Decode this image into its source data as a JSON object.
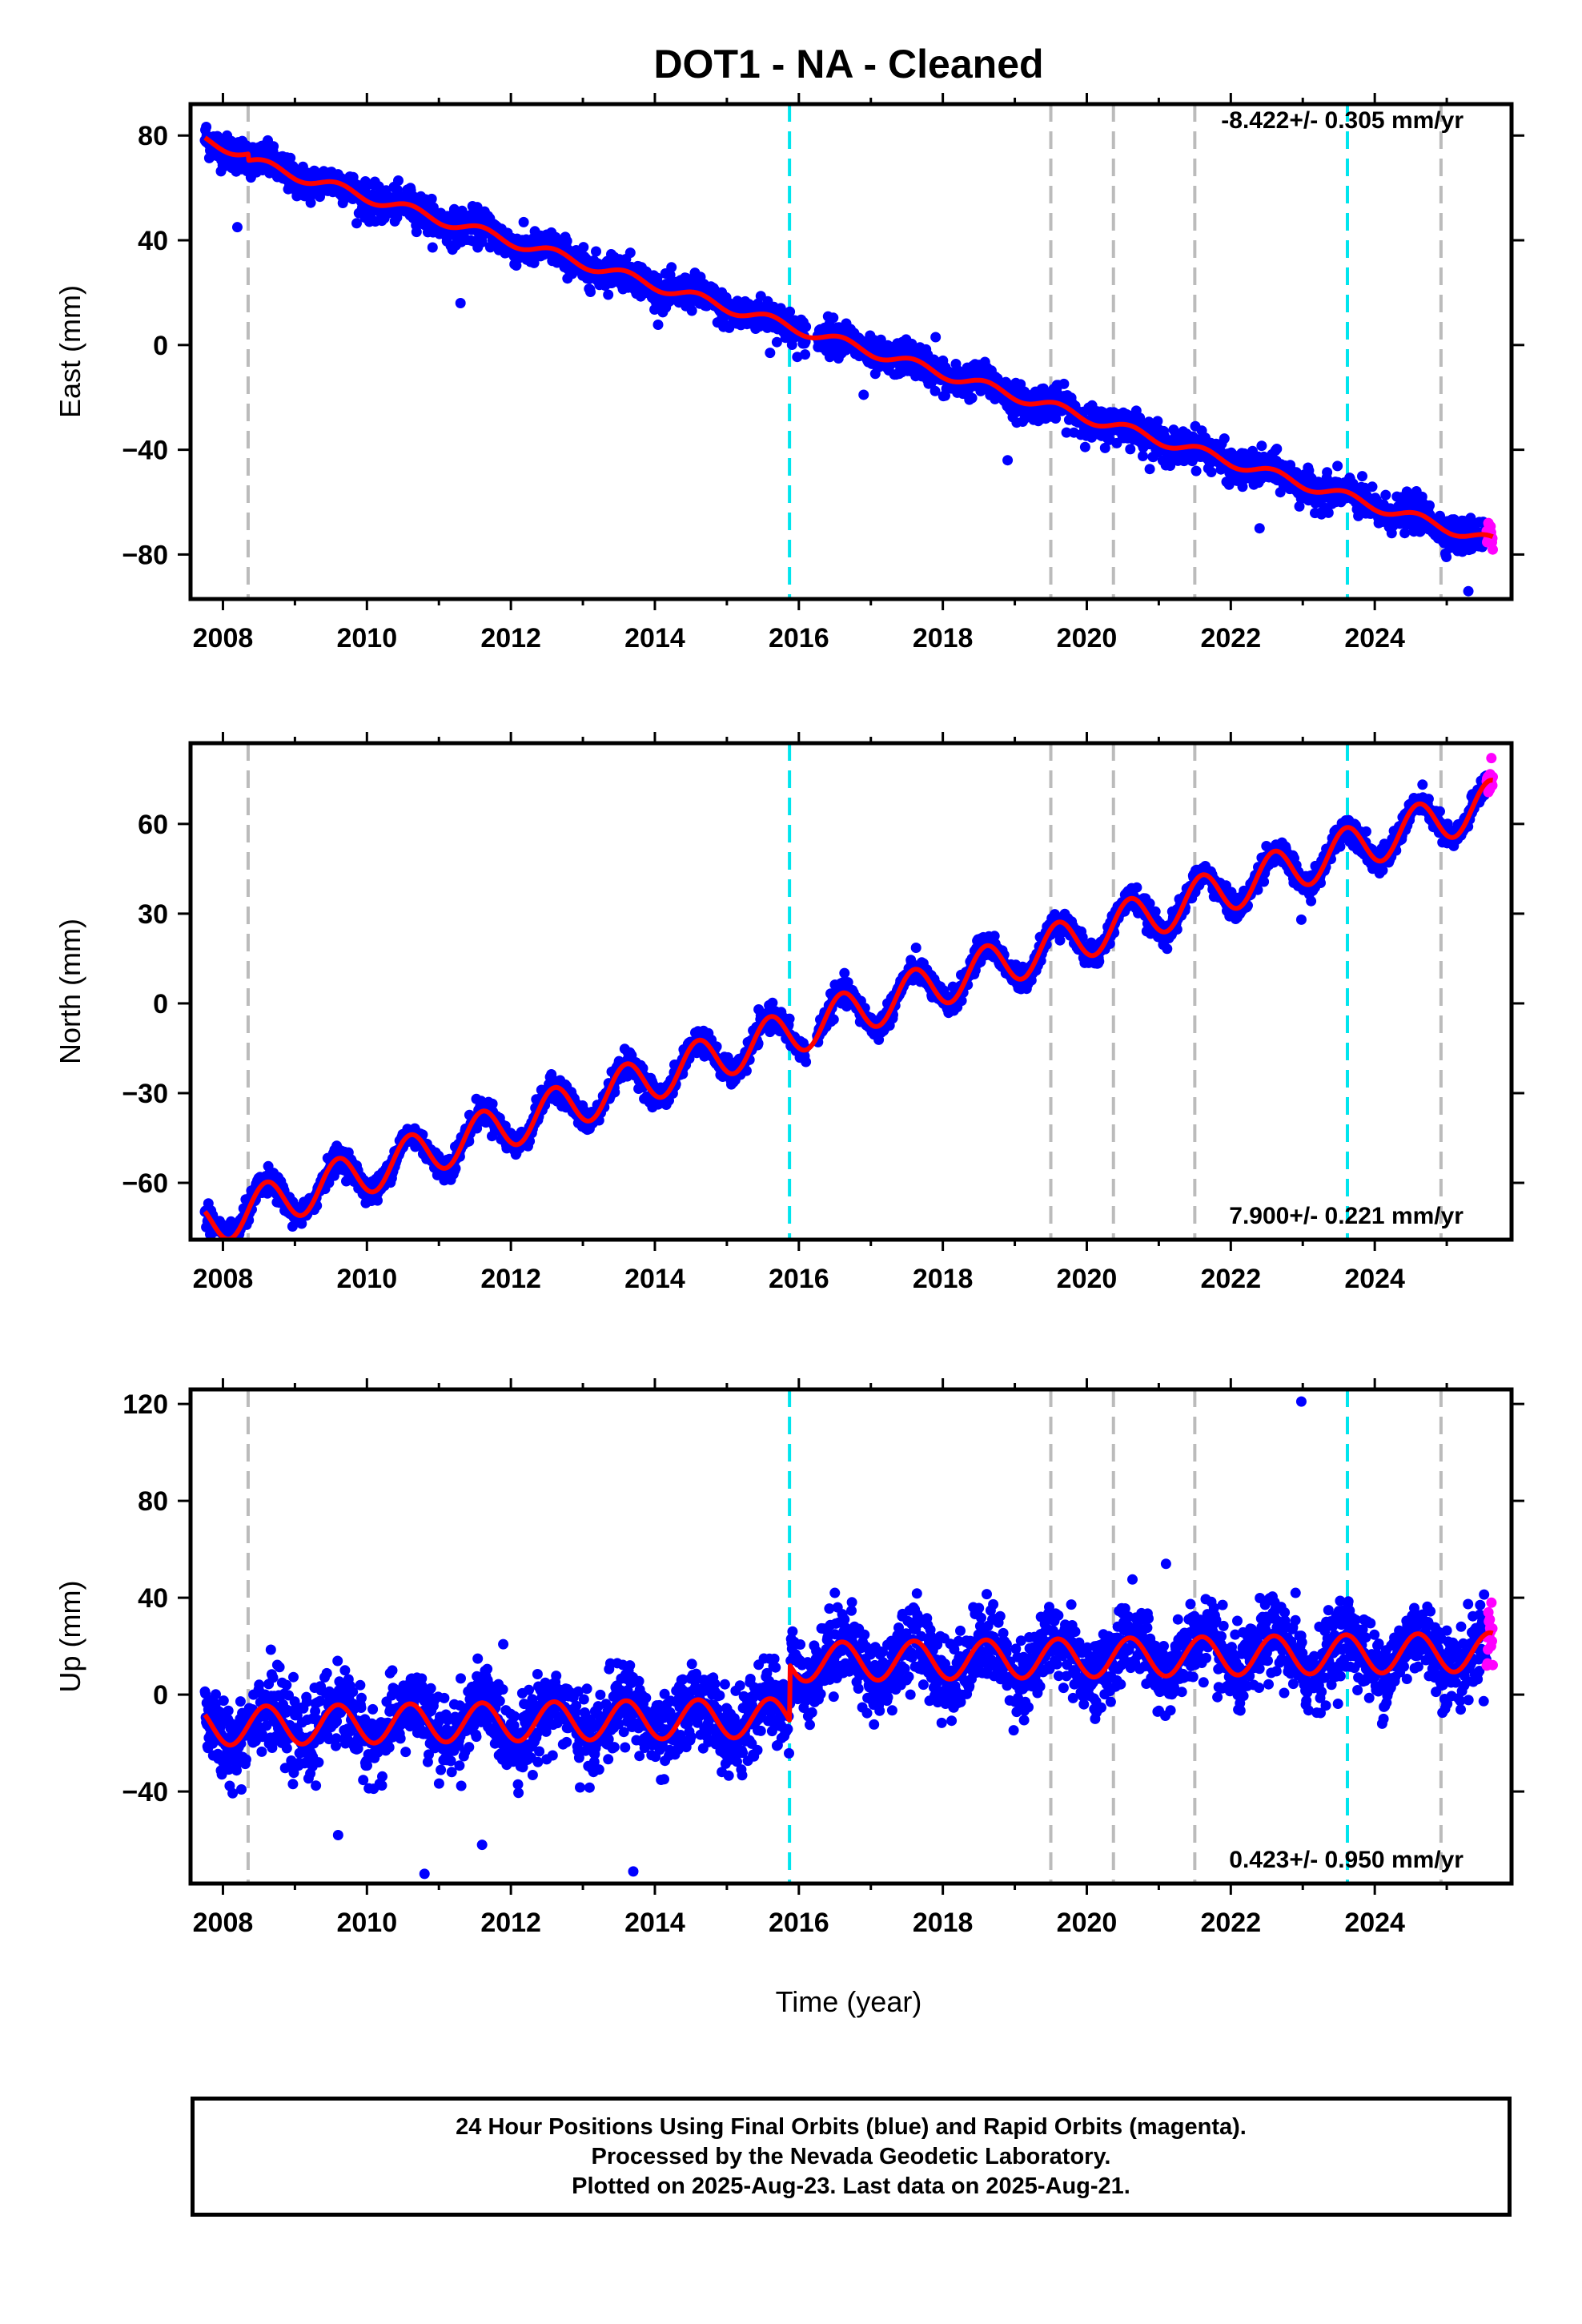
{
  "chart_data": {
    "type": "scatter",
    "title": "DOT1  - NA - Cleaned",
    "xlabel": "Time (year)",
    "x_ticks": [
      "2008",
      "2010",
      "2012",
      "2014",
      "2016",
      "2018",
      "2020",
      "2022",
      "2024"
    ],
    "xlim": [
      2007.55,
      2025.9
    ],
    "data_start": 2007.75,
    "data_end": 2025.64,
    "rapid_start": 2025.55,
    "colors": {
      "final": "#0000ff",
      "rapid": "#ff00ff",
      "model": "#ff0000",
      "step_gray": "#bbbbbb",
      "step_cyan": "#00e5ee"
    },
    "steps": [
      {
        "year": 2008.35,
        "color": "gray"
      },
      {
        "year": 2015.87,
        "color": "cyan"
      },
      {
        "year": 2019.5,
        "color": "gray"
      },
      {
        "year": 2020.37,
        "color": "gray"
      },
      {
        "year": 2021.5,
        "color": "gray"
      },
      {
        "year": 2023.62,
        "color": "cyan"
      },
      {
        "year": 2024.92,
        "color": "gray"
      }
    ],
    "panels": [
      {
        "name": "east",
        "ylabel": "East (mm)",
        "ylim": [
          -97,
          92
        ],
        "y_ticks": [
          80,
          40,
          0,
          -40,
          -80
        ],
        "y_tick_labels": [
          "80",
          "40",
          "0",
          "−40",
          "−80"
        ],
        "rate_label": "-8.422+/- 0.305 mm/yr",
        "rate_pos": "top-right",
        "model": {
          "rate": -8.422,
          "intercept": 78.0,
          "seasonal_amp": 2.0,
          "offsets": [
            {
              "year": 2008.35,
              "mm": -2.5
            }
          ]
        },
        "noise_mm": 3.2,
        "outliers": [
          {
            "x": 2008.2,
            "y": 45
          },
          {
            "x": 2011.3,
            "y": 16
          },
          {
            "x": 2016.9,
            "y": -19
          },
          {
            "x": 2018.9,
            "y": -44
          },
          {
            "x": 2022.4,
            "y": -70
          },
          {
            "x": 2025.3,
            "y": -94
          },
          {
            "x": 2017.9,
            "y": 3
          },
          {
            "x": 2015.6,
            "y": -3
          }
        ]
      },
      {
        "name": "north",
        "ylabel": "North (mm)",
        "ylim": [
          -79,
          87
        ],
        "y_ticks": [
          60,
          30,
          0,
          -30,
          -60
        ],
        "y_tick_labels": [
          "60",
          "30",
          "0",
          "−30",
          "−60"
        ],
        "rate_label": "7.900+/- 0.221 mm/yr",
        "rate_pos": "bottom-right",
        "model": {
          "rate": 7.9,
          "intercept": -74.0,
          "seasonal_amp": 7.5,
          "offsets": []
        },
        "noise_mm": 2.0,
        "outliers": [
          {
            "x": 2022.98,
            "y": 28
          },
          {
            "x": 2025.62,
            "y": 82
          }
        ]
      },
      {
        "name": "up",
        "ylabel": "Up (mm)",
        "ylim": [
          -78,
          126
        ],
        "y_ticks": [
          120,
          80,
          40,
          0,
          -40
        ],
        "y_tick_labels": [
          "120",
          "80",
          "40",
          "0",
          "−40"
        ],
        "rate_label": "0.423+/- 0.950 mm/yr",
        "rate_pos": "bottom-right",
        "model": {
          "rate": 0.423,
          "intercept": -13.0,
          "seasonal_amp": 8.0,
          "offsets": [
            {
              "year": 2015.87,
              "mm": 23.0
            }
          ]
        },
        "noise_mm": 8.0,
        "outliers": [
          {
            "x": 2022.98,
            "y": 121
          },
          {
            "x": 2021.1,
            "y": 54
          },
          {
            "x": 2010.8,
            "y": -74
          },
          {
            "x": 2013.7,
            "y": -73
          },
          {
            "x": 2016.5,
            "y": 42
          },
          {
            "x": 2022.9,
            "y": 42
          },
          {
            "x": 2009.6,
            "y": -58
          },
          {
            "x": 2011.6,
            "y": -62
          }
        ]
      }
    ]
  },
  "footer": {
    "line1": "24 Hour Positions Using Final Orbits (blue) and Rapid Orbits (magenta).",
    "line2": "Processed by the Nevada Geodetic Laboratory.",
    "line3": "Plotted on 2025-Aug-23. Last data on 2025-Aug-21."
  }
}
